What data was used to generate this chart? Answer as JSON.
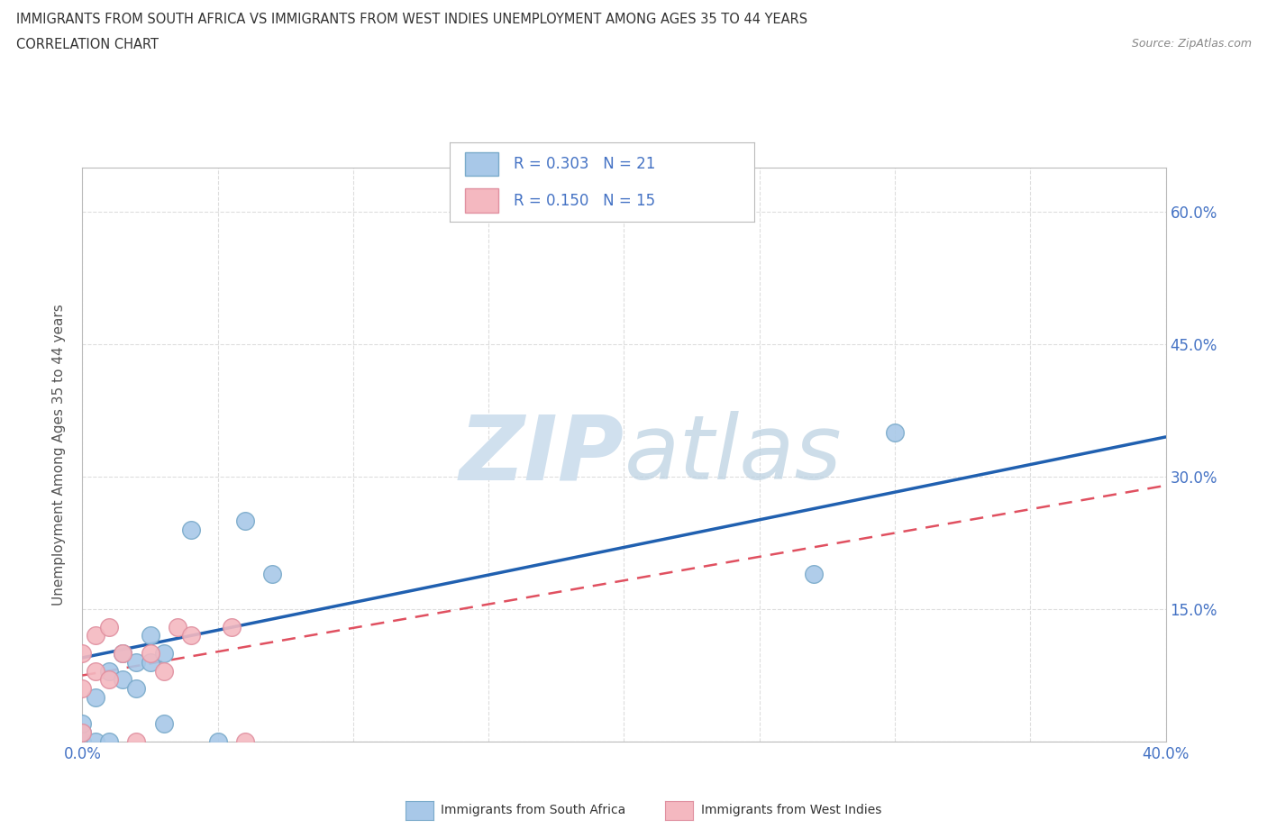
{
  "title_line1": "IMMIGRANTS FROM SOUTH AFRICA VS IMMIGRANTS FROM WEST INDIES UNEMPLOYMENT AMONG AGES 35 TO 44 YEARS",
  "title_line2": "CORRELATION CHART",
  "source_text": "Source: ZipAtlas.com",
  "ylabel": "Unemployment Among Ages 35 to 44 years",
  "xlim": [
    0.0,
    0.4
  ],
  "ylim": [
    0.0,
    0.65
  ],
  "x_ticks": [
    0.0,
    0.05,
    0.1,
    0.15,
    0.2,
    0.25,
    0.3,
    0.35,
    0.4
  ],
  "x_tick_labels": [
    "0.0%",
    "",
    "",
    "",
    "",
    "",
    "",
    "",
    "40.0%"
  ],
  "y_ticks": [
    0.0,
    0.15,
    0.3,
    0.45,
    0.6
  ],
  "y_tick_labels_right": [
    "",
    "15.0%",
    "30.0%",
    "45.0%",
    "60.0%"
  ],
  "grid_color": "#dddddd",
  "background_color": "#ffffff",
  "watermark_zip": "ZIP",
  "watermark_atlas": "atlas",
  "watermark_color": "#d0e0ee",
  "legend_R1": "R = 0.303",
  "legend_N1": "N = 21",
  "legend_R2": "R = 0.150",
  "legend_N2": "N = 15",
  "color_sa": "#a8c8e8",
  "color_sa_edge": "#7aaaca",
  "color_wi": "#f4b8c0",
  "color_wi_edge": "#e090a0",
  "color_sa_line": "#2060b0",
  "color_wi_line": "#e05060",
  "sa_scatter_x": [
    0.0,
    0.0,
    0.0,
    0.005,
    0.005,
    0.01,
    0.01,
    0.015,
    0.015,
    0.02,
    0.02,
    0.025,
    0.025,
    0.03,
    0.03,
    0.04,
    0.05,
    0.06,
    0.07,
    0.27,
    0.3
  ],
  "sa_scatter_y": [
    0.0,
    0.01,
    0.02,
    0.0,
    0.05,
    0.0,
    0.08,
    0.07,
    0.1,
    0.06,
    0.09,
    0.09,
    0.12,
    0.02,
    0.1,
    0.24,
    0.0,
    0.25,
    0.19,
    0.19,
    0.35
  ],
  "wi_scatter_x": [
    0.0,
    0.0,
    0.0,
    0.005,
    0.005,
    0.01,
    0.01,
    0.015,
    0.02,
    0.025,
    0.03,
    0.035,
    0.04,
    0.055,
    0.06
  ],
  "wi_scatter_y": [
    0.01,
    0.06,
    0.1,
    0.08,
    0.12,
    0.07,
    0.13,
    0.1,
    0.0,
    0.1,
    0.08,
    0.13,
    0.12,
    0.13,
    0.0
  ],
  "sa_trendline_x": [
    0.0,
    0.4
  ],
  "sa_trendline_y": [
    0.095,
    0.345
  ],
  "wi_trendline_x": [
    0.0,
    0.4
  ],
  "wi_trendline_y": [
    0.075,
    0.29
  ],
  "bottom_legend_sa": "Immigrants from South Africa",
  "bottom_legend_wi": "Immigrants from West Indies"
}
